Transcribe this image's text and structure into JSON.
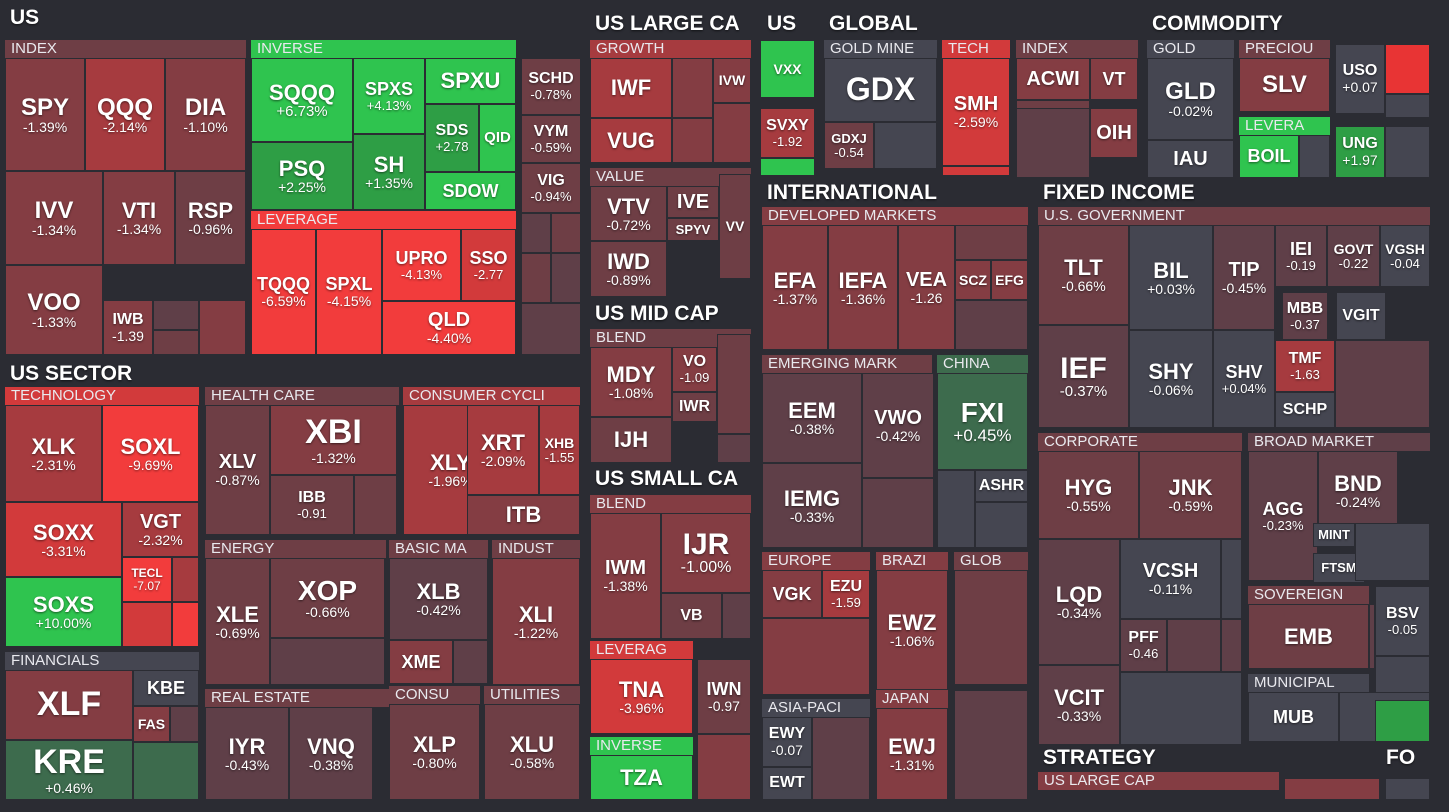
{
  "chart_data": {
    "type": "treemap",
    "groups": [
      {
        "label": "US"
      },
      {
        "label": "US SECTOR"
      },
      {
        "label": "US LARGE CA"
      },
      {
        "label": "US MID CAP"
      },
      {
        "label": "US SMALL CA"
      },
      {
        "label": "US"
      },
      {
        "label": "GLOBAL"
      },
      {
        "label": "INTERNATIONAL"
      },
      {
        "label": "COMMODITY"
      },
      {
        "label": "FIXED INCOME"
      },
      {
        "label": "STRATEGY"
      },
      {
        "label": "FO"
      }
    ],
    "subgroups": [
      "INDEX",
      "INVERSE",
      "LEVERAGE",
      "TECHNOLOGY",
      "FINANCIALS",
      "HEALTH CARE",
      "CONSUMER CYCLI",
      "ENERGY",
      "BASIC MA",
      "INDUST",
      "REAL ESTATE",
      "CONSU",
      "UTILITIES",
      "GROWTH",
      "VALUE",
      "BLEND",
      "BLEND",
      "LEVERAG",
      "INVERSE",
      "GOLD MINE",
      "TECH",
      "INDEX",
      "DEVELOPED MARKETS",
      "EMERGING MARK",
      "CHINA",
      "EUROPE",
      "BRAZI",
      "GLOB",
      "ASIA-PACI",
      "JAPAN",
      "GOLD",
      "PRECIOU",
      "LEVERA",
      "U.S. GOVERNMENT",
      "CORPORATE",
      "BROAD MARKET",
      "SOVEREIGN",
      "MUNICIPAL",
      "US LARGE CAP"
    ],
    "tiles": [
      {
        "ticker": "SPY",
        "change": "-1.39%"
      },
      {
        "ticker": "QQQ",
        "change": "-2.14%"
      },
      {
        "ticker": "DIA",
        "change": "-1.10%"
      },
      {
        "ticker": "IVV",
        "change": "-1.34%"
      },
      {
        "ticker": "VTI",
        "change": "-1.34%"
      },
      {
        "ticker": "RSP",
        "change": "-0.96%"
      },
      {
        "ticker": "VOO",
        "change": "-1.33%"
      },
      {
        "ticker": "IWB",
        "change": "-1.39"
      },
      {
        "ticker": "SQQQ",
        "change": "+6.73%"
      },
      {
        "ticker": "SPXS",
        "change": "+4.13%"
      },
      {
        "ticker": "SPXU",
        "change": ""
      },
      {
        "ticker": "PSQ",
        "change": "+2.25%"
      },
      {
        "ticker": "SH",
        "change": "+1.35%"
      },
      {
        "ticker": "SDS",
        "change": "+2.78"
      },
      {
        "ticker": "QID",
        "change": ""
      },
      {
        "ticker": "SDOW",
        "change": ""
      },
      {
        "ticker": "TQQQ",
        "change": "-6.59%"
      },
      {
        "ticker": "SPXL",
        "change": "-4.15%"
      },
      {
        "ticker": "UPRO",
        "change": "-4.13%"
      },
      {
        "ticker": "SSO",
        "change": "-2.77"
      },
      {
        "ticker": "QLD",
        "change": "-4.40%"
      },
      {
        "ticker": "SCHD",
        "change": "-0.78%"
      },
      {
        "ticker": "VYM",
        "change": "-0.59%"
      },
      {
        "ticker": "VIG",
        "change": "-0.94%"
      },
      {
        "ticker": "XLK",
        "change": "-2.31%"
      },
      {
        "ticker": "SOXL",
        "change": "-9.69%"
      },
      {
        "ticker": "SOXX",
        "change": "-3.31%"
      },
      {
        "ticker": "VGT",
        "change": "-2.32%"
      },
      {
        "ticker": "TECL",
        "change": "-7.07"
      },
      {
        "ticker": "SOXS",
        "change": "+10.00%"
      },
      {
        "ticker": "XLF",
        "change": ""
      },
      {
        "ticker": "KBE",
        "change": ""
      },
      {
        "ticker": "FAS",
        "change": ""
      },
      {
        "ticker": "KRE",
        "change": "+0.46%"
      },
      {
        "ticker": "XLV",
        "change": "-0.87%"
      },
      {
        "ticker": "XBI",
        "change": "-1.32%"
      },
      {
        "ticker": "IBB",
        "change": "-0.91"
      },
      {
        "ticker": "XLY",
        "change": "-1.96%"
      },
      {
        "ticker": "XRT",
        "change": "-2.09%"
      },
      {
        "ticker": "XHB",
        "change": "-1.55"
      },
      {
        "ticker": "ITB",
        "change": ""
      },
      {
        "ticker": "XLE",
        "change": "-0.69%"
      },
      {
        "ticker": "XOP",
        "change": "-0.66%"
      },
      {
        "ticker": "XLB",
        "change": "-0.42%"
      },
      {
        "ticker": "XME",
        "change": ""
      },
      {
        "ticker": "XLI",
        "change": "-1.22%"
      },
      {
        "ticker": "IYR",
        "change": "-0.43%"
      },
      {
        "ticker": "VNQ",
        "change": "-0.38%"
      },
      {
        "ticker": "XLP",
        "change": "-0.80%"
      },
      {
        "ticker": "XLU",
        "change": "-0.58%"
      },
      {
        "ticker": "IWF",
        "change": ""
      },
      {
        "ticker": "IVW",
        "change": ""
      },
      {
        "ticker": "VUG",
        "change": ""
      },
      {
        "ticker": "VTV",
        "change": "-0.72%"
      },
      {
        "ticker": "IVE",
        "change": ""
      },
      {
        "ticker": "SPYV",
        "change": ""
      },
      {
        "ticker": "VV",
        "change": ""
      },
      {
        "ticker": "IWD",
        "change": "-0.89%"
      },
      {
        "ticker": "MDY",
        "change": "-1.08%"
      },
      {
        "ticker": "VO",
        "change": "-1.09"
      },
      {
        "ticker": "IWR",
        "change": ""
      },
      {
        "ticker": "IJH",
        "change": ""
      },
      {
        "ticker": "IWM",
        "change": "-1.38%"
      },
      {
        "ticker": "IJR",
        "change": "-1.00%"
      },
      {
        "ticker": "VB",
        "change": ""
      },
      {
        "ticker": "TNA",
        "change": "-3.96%"
      },
      {
        "ticker": "IWN",
        "change": "-0.97"
      },
      {
        "ticker": "TZA",
        "change": ""
      },
      {
        "ticker": "VXX",
        "change": ""
      },
      {
        "ticker": "SVXY",
        "change": "-1.92"
      },
      {
        "ticker": "GDX",
        "change": ""
      },
      {
        "ticker": "GDXJ",
        "change": "-0.54"
      },
      {
        "ticker": "SMH",
        "change": "-2.59%"
      },
      {
        "ticker": "ACWI",
        "change": ""
      },
      {
        "ticker": "VT",
        "change": ""
      },
      {
        "ticker": "OIH",
        "change": ""
      },
      {
        "ticker": "EFA",
        "change": "-1.37%"
      },
      {
        "ticker": "IEFA",
        "change": "-1.36%"
      },
      {
        "ticker": "VEA",
        "change": "-1.26"
      },
      {
        "ticker": "SCZ",
        "change": ""
      },
      {
        "ticker": "EFG",
        "change": ""
      },
      {
        "ticker": "EEM",
        "change": "-0.38%"
      },
      {
        "ticker": "VWO",
        "change": "-0.42%"
      },
      {
        "ticker": "IEMG",
        "change": "-0.33%"
      },
      {
        "ticker": "FXI",
        "change": "+0.45%"
      },
      {
        "ticker": "ASHR",
        "change": ""
      },
      {
        "ticker": "VGK",
        "change": ""
      },
      {
        "ticker": "EZU",
        "change": "-1.59"
      },
      {
        "ticker": "EWZ",
        "change": "-1.06%"
      },
      {
        "ticker": "EWY",
        "change": "-0.07"
      },
      {
        "ticker": "EWT",
        "change": ""
      },
      {
        "ticker": "EWJ",
        "change": "-1.31%"
      },
      {
        "ticker": "GLD",
        "change": "-0.02%"
      },
      {
        "ticker": "IAU",
        "change": ""
      },
      {
        "ticker": "SLV",
        "change": ""
      },
      {
        "ticker": "USO",
        "change": "+0.07"
      },
      {
        "ticker": "BOIL",
        "change": ""
      },
      {
        "ticker": "UNG",
        "change": "+1.97"
      },
      {
        "ticker": "TLT",
        "change": "-0.66%"
      },
      {
        "ticker": "BIL",
        "change": "+0.03%"
      },
      {
        "ticker": "TIP",
        "change": "-0.45%"
      },
      {
        "ticker": "IEI",
        "change": "-0.19"
      },
      {
        "ticker": "GOVT",
        "change": "-0.22"
      },
      {
        "ticker": "VGSH",
        "change": "-0.04"
      },
      {
        "ticker": "MBB",
        "change": "-0.37"
      },
      {
        "ticker": "VGIT",
        "change": ""
      },
      {
        "ticker": "IEF",
        "change": "-0.37%"
      },
      {
        "ticker": "SHY",
        "change": "-0.06%"
      },
      {
        "ticker": "SHV",
        "change": "+0.04%"
      },
      {
        "ticker": "TMF",
        "change": "-1.63"
      },
      {
        "ticker": "SCHP",
        "change": ""
      },
      {
        "ticker": "HYG",
        "change": "-0.55%"
      },
      {
        "ticker": "JNK",
        "change": "-0.59%"
      },
      {
        "ticker": "LQD",
        "change": "-0.34%"
      },
      {
        "ticker": "VCSH",
        "change": "-0.11%"
      },
      {
        "ticker": "PFF",
        "change": "-0.46"
      },
      {
        "ticker": "VCIT",
        "change": "-0.33%"
      },
      {
        "ticker": "AGG",
        "change": "-0.23%"
      },
      {
        "ticker": "BND",
        "change": "-0.24%"
      },
      {
        "ticker": "MINT",
        "change": ""
      },
      {
        "ticker": "FTSM",
        "change": ""
      },
      {
        "ticker": "EMB",
        "change": ""
      },
      {
        "ticker": "BSV",
        "change": "-0.05"
      },
      {
        "ticker": "MUB",
        "change": ""
      }
    ]
  }
}
